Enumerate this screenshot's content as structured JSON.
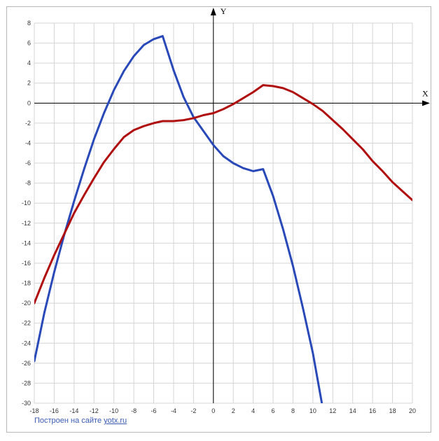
{
  "chart_data": {
    "type": "line",
    "xlabel": "X",
    "ylabel": "Y",
    "xlim": [
      -18,
      20
    ],
    "ylim": [
      -30,
      8
    ],
    "x_ticks": [
      -18,
      -16,
      -14,
      -12,
      -10,
      -8,
      -6,
      -4,
      -2,
      0,
      2,
      4,
      6,
      8,
      10,
      12,
      14,
      16,
      18,
      20
    ],
    "y_ticks": [
      8,
      6,
      4,
      2,
      0,
      -2,
      -4,
      -6,
      -8,
      -10,
      -12,
      -14,
      -16,
      -18,
      -20,
      -22,
      -24,
      -26,
      -28,
      -30
    ],
    "grid": true,
    "series": [
      {
        "color": "#2a49b8",
        "points": [
          [
            -18,
            -25.8
          ],
          [
            -17,
            -21.0
          ],
          [
            -16,
            -16.9
          ],
          [
            -15,
            -13.2
          ],
          [
            -14,
            -9.8
          ],
          [
            -13,
            -6.6
          ],
          [
            -12,
            -3.6
          ],
          [
            -11,
            -1.0
          ],
          [
            -10,
            1.3
          ],
          [
            -9,
            3.2
          ],
          [
            -8,
            4.7
          ],
          [
            -7,
            5.8
          ],
          [
            -6,
            6.4
          ],
          [
            -5.1,
            6.7
          ],
          [
            -4,
            3.3
          ],
          [
            -3,
            0.6
          ],
          [
            -2,
            -1.4
          ],
          [
            -1,
            -2.8
          ],
          [
            0,
            -4.2
          ],
          [
            1,
            -5.3
          ],
          [
            2,
            -6.0
          ],
          [
            3,
            -6.5
          ],
          [
            4,
            -6.8
          ],
          [
            5,
            -6.6
          ],
          [
            6,
            -9.3
          ],
          [
            7,
            -12.6
          ],
          [
            8,
            -16.3
          ],
          [
            9,
            -20.5
          ],
          [
            10,
            -25.0
          ],
          [
            10.9,
            -30.0
          ]
        ]
      },
      {
        "color": "#b00f0f",
        "points": [
          [
            -18,
            -20.0
          ],
          [
            -17,
            -17.5
          ],
          [
            -16,
            -15.2
          ],
          [
            -15,
            -13.1
          ],
          [
            -14,
            -11.0
          ],
          [
            -13,
            -9.2
          ],
          [
            -12,
            -7.5
          ],
          [
            -11,
            -5.9
          ],
          [
            -10,
            -4.6
          ],
          [
            -9,
            -3.4
          ],
          [
            -8,
            -2.7
          ],
          [
            -7,
            -2.3
          ],
          [
            -6,
            -2.0
          ],
          [
            -5.1,
            -1.8
          ],
          [
            -4,
            -1.8
          ],
          [
            -3,
            -1.7
          ],
          [
            -2,
            -1.5
          ],
          [
            -1,
            -1.2
          ],
          [
            0,
            -1.0
          ],
          [
            1,
            -0.6
          ],
          [
            2,
            -0.1
          ],
          [
            3,
            0.5
          ],
          [
            4,
            1.1
          ],
          [
            5,
            1.8
          ],
          [
            6,
            1.7
          ],
          [
            7,
            1.5
          ],
          [
            8,
            1.1
          ],
          [
            9,
            0.5
          ],
          [
            10,
            -0.1
          ],
          [
            11,
            -0.8
          ],
          [
            12,
            -1.7
          ],
          [
            13,
            -2.6
          ],
          [
            14,
            -3.6
          ],
          [
            15,
            -4.6
          ],
          [
            16,
            -5.8
          ],
          [
            17,
            -6.8
          ],
          [
            18,
            -7.9
          ],
          [
            19,
            -8.8
          ],
          [
            20,
            -9.7
          ]
        ]
      }
    ]
  },
  "credit": {
    "prefix": "Построен на сайте ",
    "link": "yotx.ru"
  }
}
